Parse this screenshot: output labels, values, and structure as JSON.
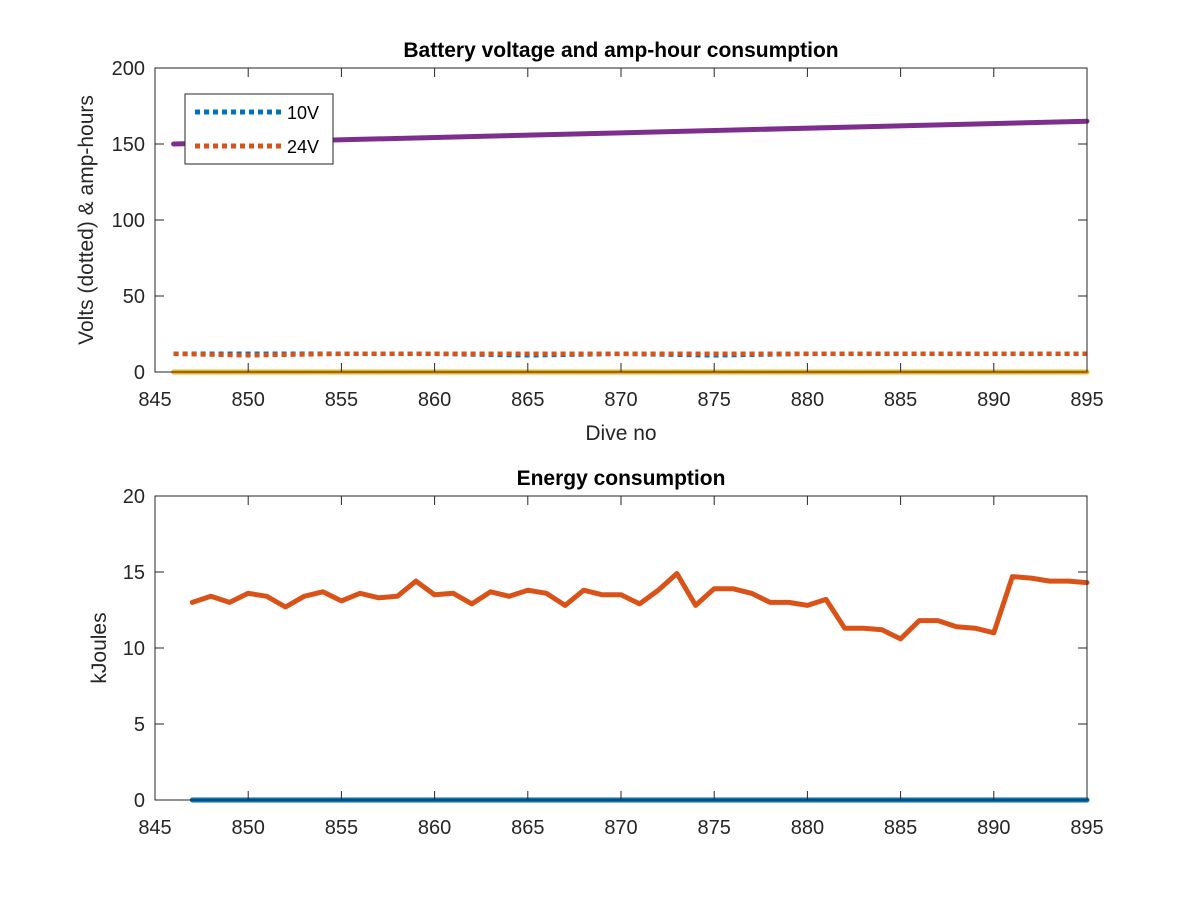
{
  "chart_data": [
    {
      "type": "line",
      "title": "Battery voltage and amp-hour consumption",
      "xlabel": "Dive no",
      "ylabel": "Volts (dotted) & amp-hours",
      "xlim": [
        845,
        895
      ],
      "ylim": [
        0,
        200
      ],
      "xticks": [
        "845",
        "850",
        "855",
        "860",
        "865",
        "870",
        "875",
        "880",
        "885",
        "890",
        "895"
      ],
      "yticks": [
        "0",
        "50",
        "100",
        "150",
        "200"
      ],
      "grid": false,
      "legend": {
        "placement": "top-left",
        "entries": [
          "10V",
          "24V"
        ]
      },
      "series": [
        {
          "name": "10V",
          "style": "dotted",
          "color": "#0072BD",
          "x": [
            846,
            850,
            855,
            860,
            865,
            870,
            875,
            880,
            885,
            890,
            895
          ],
          "y": [
            12,
            12,
            12,
            12,
            11,
            12,
            11,
            12,
            12,
            12,
            12
          ]
        },
        {
          "name": "24V",
          "style": "dotted",
          "color": "#D95319",
          "x": [
            846,
            850,
            855,
            860,
            865,
            870,
            875,
            880,
            885,
            890,
            895
          ],
          "y": [
            12,
            11,
            12,
            12,
            12,
            12,
            12,
            12,
            12,
            12,
            12
          ]
        },
        {
          "style": "solid",
          "color": "#EDB120",
          "x": [
            846,
            895
          ],
          "y": [
            0,
            0
          ]
        },
        {
          "style": "solid",
          "color": "#7E2F8E",
          "x": [
            846,
            895
          ],
          "y": [
            150,
            165
          ]
        }
      ]
    },
    {
      "type": "line",
      "title": "Energy consumption",
      "xlabel": "",
      "ylabel": "kJoules",
      "xlim": [
        845,
        895
      ],
      "ylim": [
        0,
        20
      ],
      "xticks": [
        "845",
        "850",
        "855",
        "860",
        "865",
        "870",
        "875",
        "880",
        "885",
        "890",
        "895"
      ],
      "yticks": [
        "0",
        "5",
        "10",
        "15",
        "20"
      ],
      "grid": false,
      "series": [
        {
          "style": "solid",
          "color": "#0072BD",
          "x": [
            847,
            895
          ],
          "y": [
            0,
            0
          ]
        },
        {
          "style": "solid",
          "color": "#D95319",
          "x": [
            847,
            848,
            849,
            850,
            851,
            852,
            853,
            854,
            855,
            856,
            857,
            858,
            859,
            860,
            861,
            862,
            863,
            864,
            865,
            866,
            867,
            868,
            869,
            870,
            871,
            872,
            873,
            874,
            875,
            876,
            877,
            878,
            879,
            880,
            881,
            882,
            883,
            884,
            885,
            886,
            887,
            888,
            889,
            890,
            891,
            892,
            893,
            894,
            895
          ],
          "y": [
            13.0,
            13.4,
            13.0,
            13.6,
            13.4,
            12.7,
            13.4,
            13.7,
            13.1,
            13.6,
            13.3,
            13.4,
            14.4,
            13.5,
            13.6,
            12.9,
            13.7,
            13.4,
            13.8,
            13.6,
            12.8,
            13.8,
            13.5,
            13.5,
            12.9,
            13.8,
            14.9,
            12.8,
            13.9,
            13.9,
            13.6,
            13.0,
            13.0,
            12.8,
            13.2,
            11.3,
            11.3,
            11.2,
            10.6,
            11.8,
            11.8,
            11.4,
            11.3,
            11.0,
            14.7,
            14.6,
            14.4,
            14.4,
            14.3
          ]
        }
      ]
    }
  ]
}
